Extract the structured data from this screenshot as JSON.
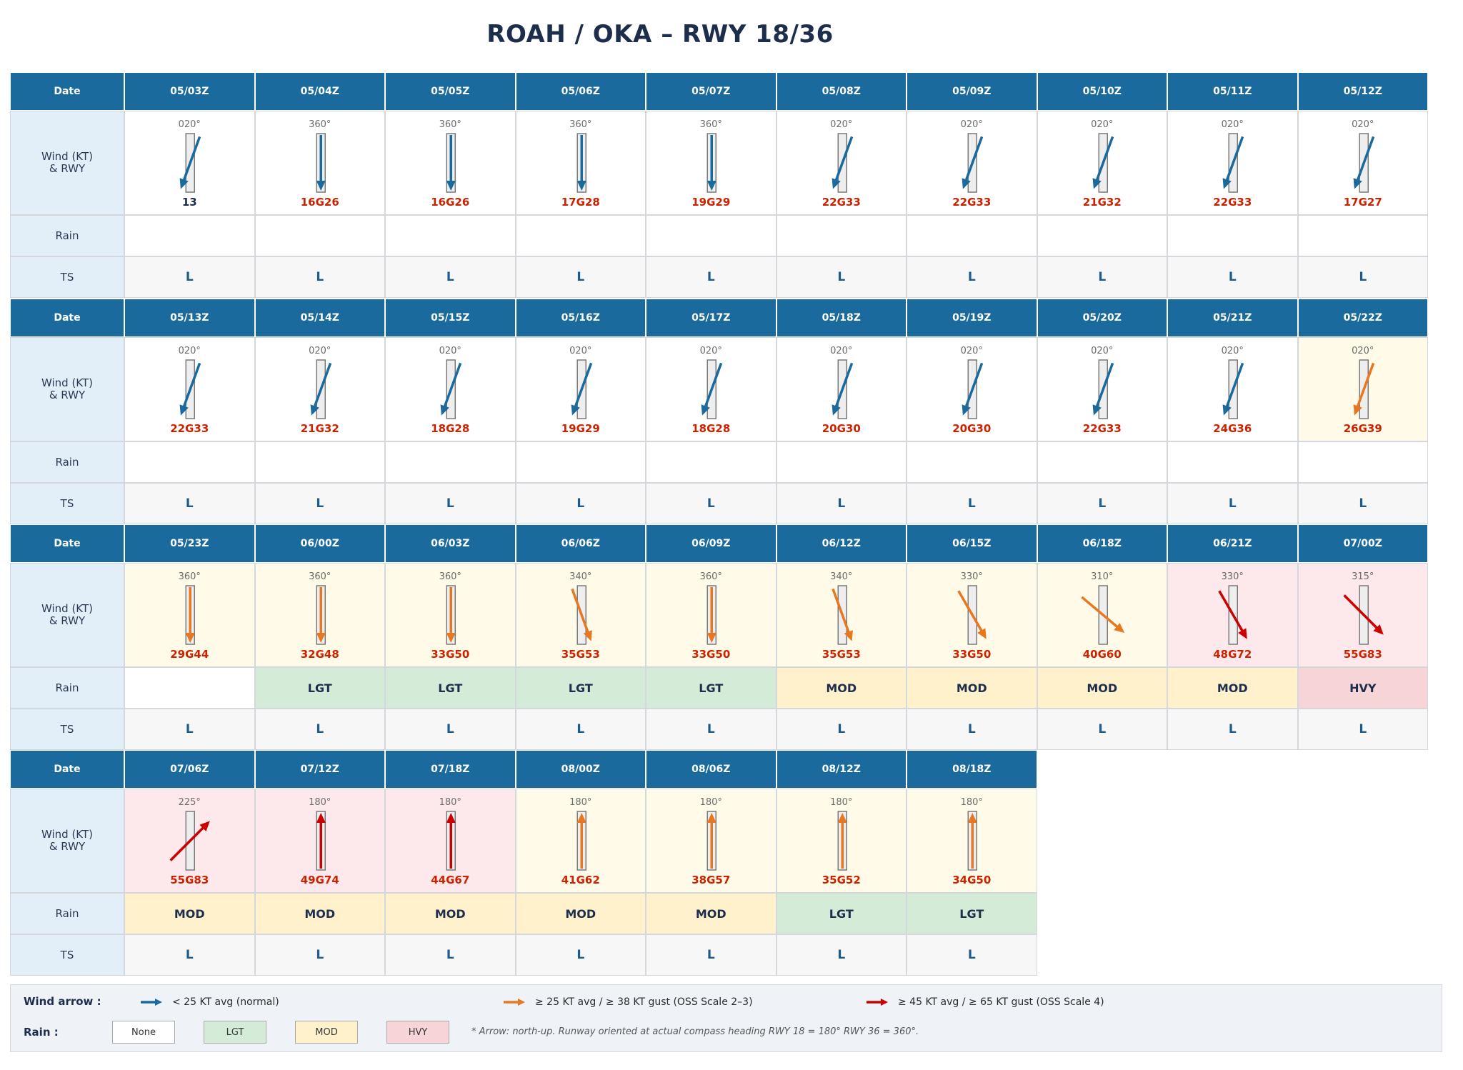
{
  "title": "ROAH / OKA  –  RWY 18/36",
  "row_labels": {
    "date": "Date",
    "wind": "Wind (KT)\n& RWY",
    "rain": "Rain",
    "ts": "TS"
  },
  "colors": {
    "header": "#1b6a9e",
    "label_bg": "#e3eff8",
    "arrow_normal": "#1b6a9e",
    "arrow_oss23": "#e87722",
    "arrow_oss4": "#cc0000",
    "bg_oss23": "#fffbe8",
    "bg_oss4": "#fde9ec",
    "rain_none": "#ffffff",
    "rain_lgt": "#d4ebd8",
    "rain_mod": "#fff1cc",
    "rain_hvy": "#f7d4d8",
    "speed_normal": "#1d2d4c",
    "speed_gust": "#cc2200"
  },
  "blocks": [
    [
      {
        "date": "05/03Z",
        "dir": 20,
        "dir_label": "020°",
        "speed": "13",
        "level": "normal",
        "rain": "",
        "ts": "L"
      },
      {
        "date": "05/04Z",
        "dir": 360,
        "dir_label": "360°",
        "speed": "16G26",
        "level": "normal",
        "rain": "",
        "ts": "L"
      },
      {
        "date": "05/05Z",
        "dir": 360,
        "dir_label": "360°",
        "speed": "16G26",
        "level": "normal",
        "rain": "",
        "ts": "L"
      },
      {
        "date": "05/06Z",
        "dir": 360,
        "dir_label": "360°",
        "speed": "17G28",
        "level": "normal",
        "rain": "",
        "ts": "L"
      },
      {
        "date": "05/07Z",
        "dir": 360,
        "dir_label": "360°",
        "speed": "19G29",
        "level": "normal",
        "rain": "",
        "ts": "L"
      },
      {
        "date": "05/08Z",
        "dir": 20,
        "dir_label": "020°",
        "speed": "22G33",
        "level": "normal",
        "rain": "",
        "ts": "L"
      },
      {
        "date": "05/09Z",
        "dir": 20,
        "dir_label": "020°",
        "speed": "22G33",
        "level": "normal",
        "rain": "",
        "ts": "L"
      },
      {
        "date": "05/10Z",
        "dir": 20,
        "dir_label": "020°",
        "speed": "21G32",
        "level": "normal",
        "rain": "",
        "ts": "L"
      },
      {
        "date": "05/11Z",
        "dir": 20,
        "dir_label": "020°",
        "speed": "22G33",
        "level": "normal",
        "rain": "",
        "ts": "L"
      },
      {
        "date": "05/12Z",
        "dir": 20,
        "dir_label": "020°",
        "speed": "17G27",
        "level": "normal",
        "rain": "",
        "ts": "L"
      }
    ],
    [
      {
        "date": "05/13Z",
        "dir": 20,
        "dir_label": "020°",
        "speed": "22G33",
        "level": "normal",
        "rain": "",
        "ts": "L"
      },
      {
        "date": "05/14Z",
        "dir": 20,
        "dir_label": "020°",
        "speed": "21G32",
        "level": "normal",
        "rain": "",
        "ts": "L"
      },
      {
        "date": "05/15Z",
        "dir": 20,
        "dir_label": "020°",
        "speed": "18G28",
        "level": "normal",
        "rain": "",
        "ts": "L"
      },
      {
        "date": "05/16Z",
        "dir": 20,
        "dir_label": "020°",
        "speed": "19G29",
        "level": "normal",
        "rain": "",
        "ts": "L"
      },
      {
        "date": "05/17Z",
        "dir": 20,
        "dir_label": "020°",
        "speed": "18G28",
        "level": "normal",
        "rain": "",
        "ts": "L"
      },
      {
        "date": "05/18Z",
        "dir": 20,
        "dir_label": "020°",
        "speed": "20G30",
        "level": "normal",
        "rain": "",
        "ts": "L"
      },
      {
        "date": "05/19Z",
        "dir": 20,
        "dir_label": "020°",
        "speed": "20G30",
        "level": "normal",
        "rain": "",
        "ts": "L"
      },
      {
        "date": "05/20Z",
        "dir": 20,
        "dir_label": "020°",
        "speed": "22G33",
        "level": "normal",
        "rain": "",
        "ts": "L"
      },
      {
        "date": "05/21Z",
        "dir": 20,
        "dir_label": "020°",
        "speed": "24G36",
        "level": "normal",
        "rain": "",
        "ts": "L"
      },
      {
        "date": "05/22Z",
        "dir": 20,
        "dir_label": "020°",
        "speed": "26G39",
        "level": "oss23",
        "rain": "",
        "ts": "L"
      }
    ],
    [
      {
        "date": "05/23Z",
        "dir": 360,
        "dir_label": "360°",
        "speed": "29G44",
        "level": "oss23",
        "rain": "",
        "ts": "L"
      },
      {
        "date": "06/00Z",
        "dir": 360,
        "dir_label": "360°",
        "speed": "32G48",
        "level": "oss23",
        "rain": "LGT",
        "ts": "L"
      },
      {
        "date": "06/03Z",
        "dir": 360,
        "dir_label": "360°",
        "speed": "33G50",
        "level": "oss23",
        "rain": "LGT",
        "ts": "L"
      },
      {
        "date": "06/06Z",
        "dir": 340,
        "dir_label": "340°",
        "speed": "35G53",
        "level": "oss23",
        "rain": "LGT",
        "ts": "L"
      },
      {
        "date": "06/09Z",
        "dir": 360,
        "dir_label": "360°",
        "speed": "33G50",
        "level": "oss23",
        "rain": "LGT",
        "ts": "L"
      },
      {
        "date": "06/12Z",
        "dir": 340,
        "dir_label": "340°",
        "speed": "35G53",
        "level": "oss23",
        "rain": "MOD",
        "ts": "L"
      },
      {
        "date": "06/15Z",
        "dir": 330,
        "dir_label": "330°",
        "speed": "33G50",
        "level": "oss23",
        "rain": "MOD",
        "ts": "L"
      },
      {
        "date": "06/18Z",
        "dir": 310,
        "dir_label": "310°",
        "speed": "40G60",
        "level": "oss23",
        "rain": "MOD",
        "ts": "L"
      },
      {
        "date": "06/21Z",
        "dir": 330,
        "dir_label": "330°",
        "speed": "48G72",
        "level": "oss4",
        "rain": "MOD",
        "ts": "L"
      },
      {
        "date": "07/00Z",
        "dir": 315,
        "dir_label": "315°",
        "speed": "55G83",
        "level": "oss4",
        "rain": "HVY",
        "ts": "L"
      }
    ],
    [
      {
        "date": "07/06Z",
        "dir": 225,
        "dir_label": "225°",
        "speed": "55G83",
        "level": "oss4",
        "rain": "MOD",
        "ts": "L"
      },
      {
        "date": "07/12Z",
        "dir": 180,
        "dir_label": "180°",
        "speed": "49G74",
        "level": "oss4",
        "rain": "MOD",
        "ts": "L"
      },
      {
        "date": "07/18Z",
        "dir": 180,
        "dir_label": "180°",
        "speed": "44G67",
        "level": "oss4",
        "rain": "MOD",
        "ts": "L"
      },
      {
        "date": "08/00Z",
        "dir": 180,
        "dir_label": "180°",
        "speed": "41G62",
        "level": "oss23",
        "rain": "MOD",
        "ts": "L"
      },
      {
        "date": "08/06Z",
        "dir": 180,
        "dir_label": "180°",
        "speed": "38G57",
        "level": "oss23",
        "rain": "MOD",
        "ts": "L"
      },
      {
        "date": "08/12Z",
        "dir": 180,
        "dir_label": "180°",
        "speed": "35G52",
        "level": "oss23",
        "rain": "LGT",
        "ts": "L"
      },
      {
        "date": "08/18Z",
        "dir": 180,
        "dir_label": "180°",
        "speed": "34G50",
        "level": "oss23",
        "rain": "LGT",
        "ts": "L"
      }
    ]
  ],
  "legend": {
    "wind_title": "Wind arrow :",
    "wind_items": [
      {
        "level": "normal",
        "text": "< 25 KT avg  (normal)"
      },
      {
        "level": "oss23",
        "text": "≥ 25 KT avg  /  ≥ 38 KT gust  (OSS Scale 2–3)"
      },
      {
        "level": "oss4",
        "text": "≥ 45 KT avg  /  ≥ 65 KT gust  (OSS Scale 4)"
      }
    ],
    "rain_title": "Rain :",
    "rain_items": [
      {
        "key": "none",
        "text": "None"
      },
      {
        "key": "lgt",
        "text": "LGT"
      },
      {
        "key": "mod",
        "text": "MOD"
      },
      {
        "key": "hvy",
        "text": "HVY"
      }
    ],
    "note": "* Arrow: north-up.  Runway oriented at actual compass heading  RWY 18 = 180°  RWY 36 = 360°."
  }
}
